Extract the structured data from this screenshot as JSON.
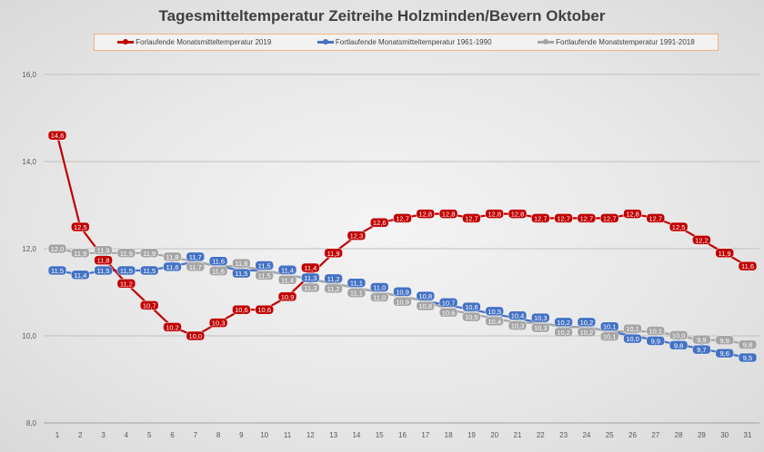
{
  "chart_data": {
    "type": "line",
    "title": "Tagesmitteltemperatur Zeitreihe Holzminden/Bevern Oktober",
    "x": [
      1,
      2,
      3,
      4,
      5,
      6,
      7,
      8,
      9,
      10,
      11,
      12,
      13,
      14,
      15,
      16,
      17,
      18,
      19,
      20,
      21,
      22,
      23,
      24,
      25,
      26,
      27,
      28,
      29,
      30,
      31
    ],
    "ylim": [
      8,
      16
    ],
    "yticks": [
      "8,0",
      "10,0",
      "12,0",
      "14,0",
      "16,0"
    ],
    "grid": true,
    "legend_placement": "top",
    "series": [
      {
        "name": "Forlaufende Monatsmitteltemperatur 2019",
        "color": "#c00000",
        "values": [
          14.6,
          12.5,
          11.8,
          11.2,
          10.7,
          10.2,
          10.0,
          10.3,
          10.6,
          10.6,
          10.9,
          11.4,
          11.9,
          12.3,
          12.6,
          12.7,
          12.8,
          12.8,
          12.7,
          12.8,
          12.8,
          12.7,
          12.7,
          12.7,
          12.7,
          12.8,
          12.7,
          12.5,
          12.2,
          11.9,
          11.6
        ]
      },
      {
        "name": "Fortlaufende Monatsmitteltemperatur 1961-1990",
        "color": "#4472c4",
        "values": [
          11.5,
          11.4,
          11.5,
          11.5,
          11.5,
          11.6,
          11.7,
          11.6,
          11.5,
          11.5,
          11.4,
          11.3,
          11.2,
          11.1,
          11.0,
          10.9,
          10.8,
          10.7,
          10.6,
          10.5,
          10.4,
          10.3,
          10.2,
          10.2,
          10.1,
          10.0,
          9.9,
          9.8,
          9.7,
          9.6,
          9.5
        ]
      },
      {
        "name": "Fortlaufende Monatstemperatur 1991-2018",
        "color": "#a5a5a5",
        "values": [
          12.0,
          11.9,
          11.9,
          11.9,
          11.9,
          11.8,
          11.7,
          11.6,
          11.6,
          11.5,
          11.4,
          11.3,
          11.2,
          11.1,
          11.0,
          10.9,
          10.8,
          10.6,
          10.5,
          10.4,
          10.3,
          10.3,
          10.2,
          10.2,
          10.1,
          10.1,
          10.1,
          10.0,
          9.9,
          9.9,
          9.8
        ]
      }
    ]
  }
}
